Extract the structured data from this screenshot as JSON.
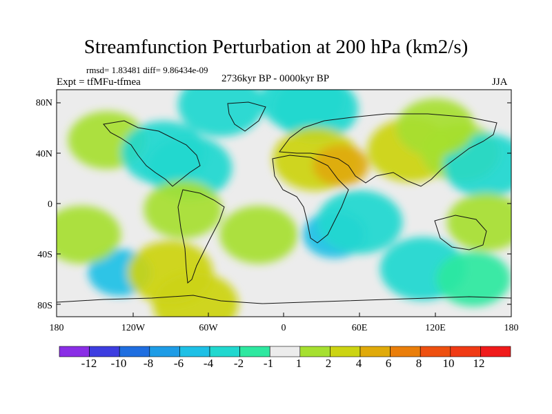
{
  "title": "Streamfunction Perturbation at 200 hPa (km2/s)",
  "stats": "rmsd= 1.83481 diff= 9.86434e-09",
  "experiment": "Expt = tfMFu-tfmea",
  "period": "2736kyr BP - 0000kyr BP",
  "season": "JJA",
  "lat_ticks": [
    "80N",
    "40N",
    "0",
    "40S",
    "80S"
  ],
  "lon_ticks": [
    "180",
    "120W",
    "60W",
    "0",
    "60E",
    "120E",
    "180"
  ],
  "colorbar": {
    "labels": [
      "-12",
      "-10",
      "-8",
      "-6",
      "-4",
      "-2",
      "-1",
      "1",
      "2",
      "4",
      "6",
      "8",
      "10",
      "12"
    ],
    "colors": [
      "#8a2ee6",
      "#3d3de0",
      "#1f6ee0",
      "#1e9ce6",
      "#1ec0e6",
      "#21d8cf",
      "#2ee8a0",
      "#ececec",
      "#a6e030",
      "#ccd412",
      "#e0aa0a",
      "#ea7e0a",
      "#ee5010",
      "#f03a14",
      "#f01a1a"
    ]
  },
  "map_fields": {
    "background_value": "#ececec",
    "blobs": [
      {
        "lon": -140,
        "lat": 50,
        "level": 1
      },
      {
        "lon": -75,
        "lat": 28,
        "level": -2
      },
      {
        "lon": -95,
        "lat": 40,
        "level": -2
      },
      {
        "lon": -80,
        "lat": -5,
        "level": 1
      },
      {
        "lon": -50,
        "lat": 78,
        "level": -2
      },
      {
        "lon": 15,
        "lat": 82,
        "level": -2
      },
      {
        "lon": 25,
        "lat": 75,
        "level": -2
      },
      {
        "lon": 25,
        "lat": 35,
        "level": 2
      },
      {
        "lon": 45,
        "lat": 30,
        "level": 3
      },
      {
        "lon": 100,
        "lat": 42,
        "level": 2
      },
      {
        "lon": 140,
        "lat": 40,
        "level": 1
      },
      {
        "lon": 160,
        "lat": 30,
        "level": -2
      },
      {
        "lon": 120,
        "lat": 60,
        "level": 1
      },
      {
        "lon": 40,
        "lat": -25,
        "level": -3
      },
      {
        "lon": 60,
        "lat": -15,
        "level": -2
      },
      {
        "lon": 110,
        "lat": -52,
        "level": -2
      },
      {
        "lon": 150,
        "lat": -60,
        "level": -1
      },
      {
        "lon": -130,
        "lat": -55,
        "level": -3
      },
      {
        "lon": -90,
        "lat": -55,
        "level": 2
      },
      {
        "lon": -70,
        "lat": -80,
        "level": 2
      },
      {
        "lon": -20,
        "lat": -25,
        "level": 1
      },
      {
        "lon": 160,
        "lat": -15,
        "level": 1
      },
      {
        "lon": -160,
        "lat": -25,
        "level": 1
      }
    ]
  }
}
